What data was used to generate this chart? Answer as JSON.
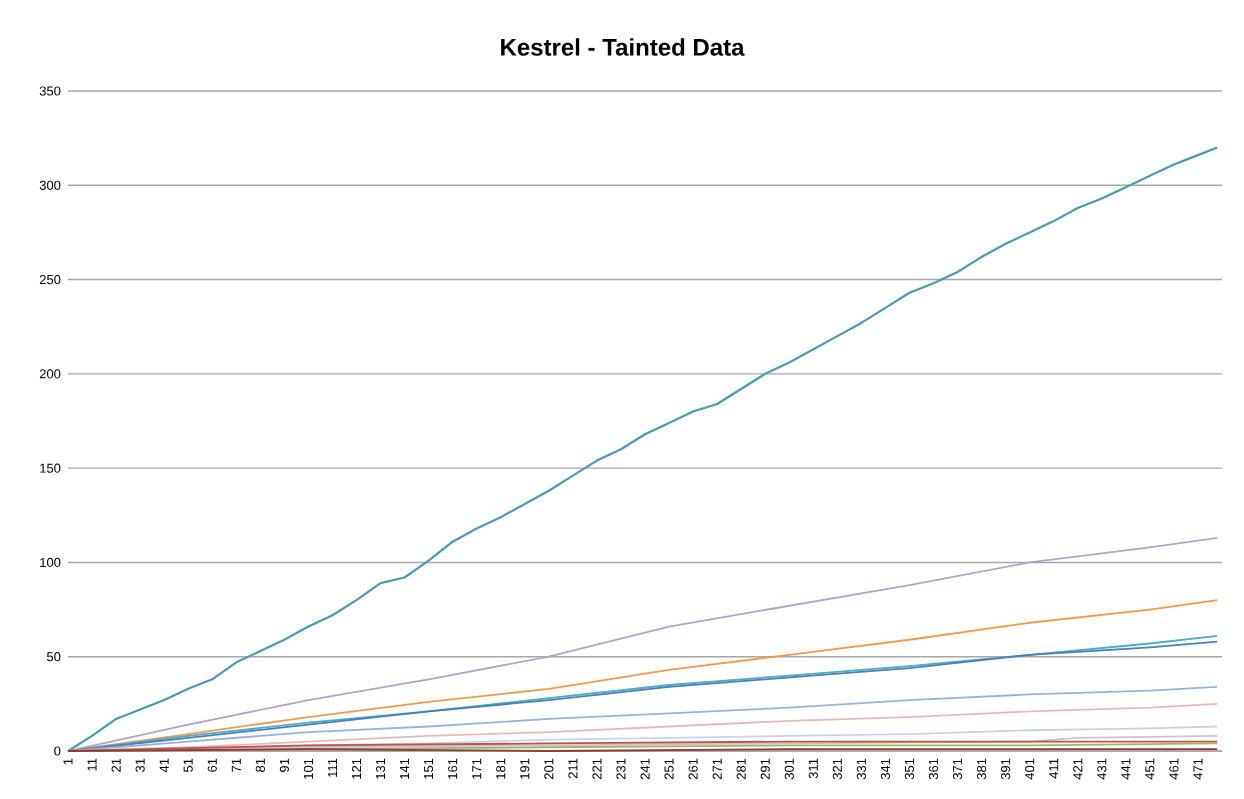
{
  "chart_data": {
    "type": "line",
    "title": "Kestrel - Tainted Data",
    "xlim": [
      1,
      481
    ],
    "xticks": [
      1,
      11,
      21,
      31,
      41,
      51,
      61,
      71,
      81,
      91,
      101,
      111,
      121,
      131,
      141,
      151,
      161,
      171,
      181,
      191,
      201,
      211,
      221,
      231,
      241,
      251,
      261,
      271,
      281,
      291,
      301,
      311,
      321,
      331,
      341,
      351,
      361,
      371,
      381,
      391,
      401,
      411,
      421,
      431,
      441,
      451,
      461,
      471
    ],
    "ylim": [
      0,
      350
    ],
    "yticks": [
      0,
      50,
      100,
      150,
      200,
      250,
      300,
      350
    ],
    "grid": "y",
    "marker": "none",
    "line_style": "solid",
    "series": [
      {
        "color": "#4a9bb0",
        "x": [
          1,
          11,
          21,
          31,
          41,
          51,
          61,
          71,
          81,
          91,
          101,
          111,
          121,
          131,
          141,
          151,
          161,
          171,
          181,
          191,
          201,
          211,
          221,
          231,
          241,
          251,
          261,
          271,
          281,
          291,
          301,
          311,
          321,
          331,
          341,
          351,
          361,
          371,
          381,
          391,
          401,
          411,
          421,
          431,
          441,
          451,
          461,
          471,
          479
        ],
        "values": [
          0,
          8,
          17,
          22,
          27,
          33,
          38,
          47,
          53,
          59,
          66,
          72,
          80,
          89,
          92,
          101,
          111,
          118,
          124,
          131,
          138,
          146,
          154,
          160,
          168,
          174,
          180,
          184,
          192,
          200,
          206,
          213,
          220,
          227,
          235,
          243,
          248,
          254,
          262,
          269,
          275,
          281,
          288,
          293,
          299,
          305,
          311,
          316,
          320
        ]
      },
      {
        "color": "#b3a2c7",
        "x": [
          1,
          51,
          101,
          151,
          201,
          251,
          301,
          351,
          401,
          451,
          479
        ],
        "values": [
          0,
          14,
          27,
          38,
          50,
          66,
          77,
          88,
          100,
          108,
          113
        ]
      },
      {
        "color": "#f09a4a",
        "x": [
          1,
          51,
          101,
          151,
          201,
          251,
          301,
          351,
          401,
          451,
          479
        ],
        "values": [
          0,
          9,
          18,
          26,
          33,
          43,
          51,
          59,
          68,
          75,
          80
        ]
      },
      {
        "color": "#4bacc6",
        "x": [
          1,
          51,
          101,
          151,
          201,
          251,
          301,
          351,
          401,
          451,
          479
        ],
        "values": [
          0,
          8,
          15,
          21,
          28,
          35,
          40,
          45,
          51,
          57,
          61
        ]
      },
      {
        "color": "#4a7ebb",
        "x": [
          1,
          51,
          101,
          151,
          201,
          251,
          301,
          351,
          401,
          451,
          479
        ],
        "values": [
          0,
          7,
          14,
          21,
          27,
          34,
          39,
          44,
          51,
          55,
          58
        ]
      },
      {
        "color": "#95b3d7",
        "x": [
          1,
          51,
          101,
          151,
          201,
          251,
          301,
          351,
          401,
          451,
          479
        ],
        "values": [
          0,
          5,
          10,
          13,
          17,
          20,
          23,
          27,
          30,
          32,
          34
        ]
      },
      {
        "color": "#e6b9b8",
        "x": [
          1,
          51,
          101,
          151,
          201,
          251,
          301,
          351,
          401,
          451,
          479
        ],
        "values": [
          0,
          2,
          5,
          8,
          10,
          13,
          16,
          18,
          21,
          23,
          25
        ]
      },
      {
        "color": "#c5d3e8",
        "x": [
          1,
          51,
          101,
          151,
          201,
          251,
          301,
          351,
          401,
          451,
          479
        ],
        "values": [
          0,
          1,
          3,
          4,
          6,
          7,
          8,
          9,
          11,
          12,
          13
        ]
      },
      {
        "color": "#ccc1da",
        "x": [
          1,
          101,
          201,
          301,
          401,
          421,
          479
        ],
        "values": [
          0,
          2,
          3,
          4,
          5,
          7,
          8
        ]
      },
      {
        "color": "#c0504d",
        "x": [
          1,
          101,
          201,
          301,
          401,
          479
        ],
        "values": [
          0,
          3,
          4,
          5,
          5,
          5
        ]
      },
      {
        "color": "#9bbb59",
        "x": [
          1,
          101,
          201,
          301,
          401,
          479
        ],
        "values": [
          0,
          1,
          2,
          3,
          3,
          4
        ]
      },
      {
        "color": "#953735",
        "x": [
          1,
          101,
          201,
          301,
          401,
          479
        ],
        "values": [
          0,
          1,
          0,
          1,
          1,
          1
        ]
      }
    ]
  }
}
